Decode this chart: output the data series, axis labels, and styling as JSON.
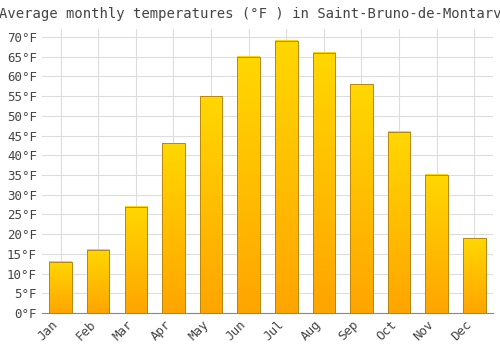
{
  "title": "Average monthly temperatures (°F ) in Saint-Bruno-de-Montarville",
  "months": [
    "Jan",
    "Feb",
    "Mar",
    "Apr",
    "May",
    "Jun",
    "Jul",
    "Aug",
    "Sep",
    "Oct",
    "Nov",
    "Dec"
  ],
  "values": [
    13,
    16,
    27,
    43,
    55,
    65,
    69,
    66,
    58,
    46,
    35,
    19
  ],
  "bar_color_bottom": "#FFA500",
  "bar_color_top": "#FFD700",
  "bar_edge_color": "#B8860B",
  "background_color": "#FFFFFF",
  "grid_color": "#DDDDDD",
  "text_color": "#444444",
  "ylim": [
    0,
    72
  ],
  "yticks": [
    0,
    5,
    10,
    15,
    20,
    25,
    30,
    35,
    40,
    45,
    50,
    55,
    60,
    65,
    70
  ],
  "title_fontsize": 10,
  "tick_fontsize": 9
}
